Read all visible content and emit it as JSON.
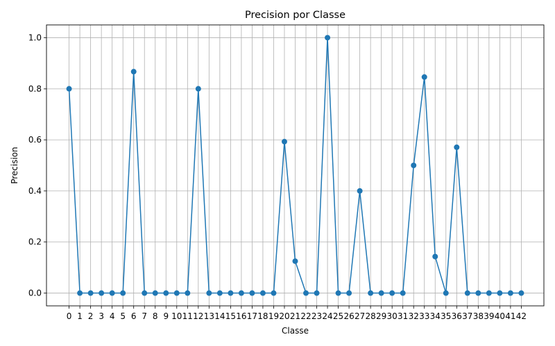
{
  "chart_data": {
    "type": "line",
    "title": "Precision por Classe",
    "xlabel": "Classe",
    "ylabel": "Precision",
    "x": [
      0,
      1,
      2,
      3,
      4,
      5,
      6,
      7,
      8,
      9,
      10,
      11,
      12,
      13,
      14,
      15,
      16,
      17,
      18,
      19,
      20,
      21,
      22,
      23,
      24,
      25,
      26,
      27,
      28,
      29,
      30,
      31,
      32,
      33,
      34,
      35,
      36,
      37,
      38,
      39,
      40,
      41,
      42
    ],
    "series": [
      {
        "values": [
          0.8,
          0,
          0,
          0,
          0,
          0,
          0.867,
          0,
          0,
          0,
          0,
          0,
          0.8,
          0,
          0,
          0,
          0,
          0,
          0,
          0,
          0.593,
          0.125,
          0,
          0,
          1.0,
          0,
          0,
          0.4,
          0,
          0,
          0,
          0,
          0.5,
          0.846,
          0.143,
          0,
          0.571,
          0,
          0,
          0,
          0,
          0,
          0
        ]
      }
    ],
    "xticks": [
      "0",
      "1",
      "2",
      "3",
      "4",
      "5",
      "6",
      "7",
      "8",
      "9",
      "10",
      "11",
      "12",
      "13",
      "14",
      "15",
      "16",
      "17",
      "18",
      "19",
      "20",
      "21",
      "22",
      "23",
      "24",
      "25",
      "26",
      "27",
      "28",
      "29",
      "30",
      "31",
      "32",
      "33",
      "34",
      "35",
      "36",
      "37",
      "38",
      "39",
      "40",
      "41",
      "42"
    ],
    "yticks": [
      "0.0",
      "0.2",
      "0.4",
      "0.6",
      "0.8",
      "1.0"
    ],
    "ylim": [
      -0.05,
      1.05
    ],
    "xlim": [
      -2.1,
      44.1
    ],
    "grid": true,
    "line_color": "#1f77b4"
  }
}
